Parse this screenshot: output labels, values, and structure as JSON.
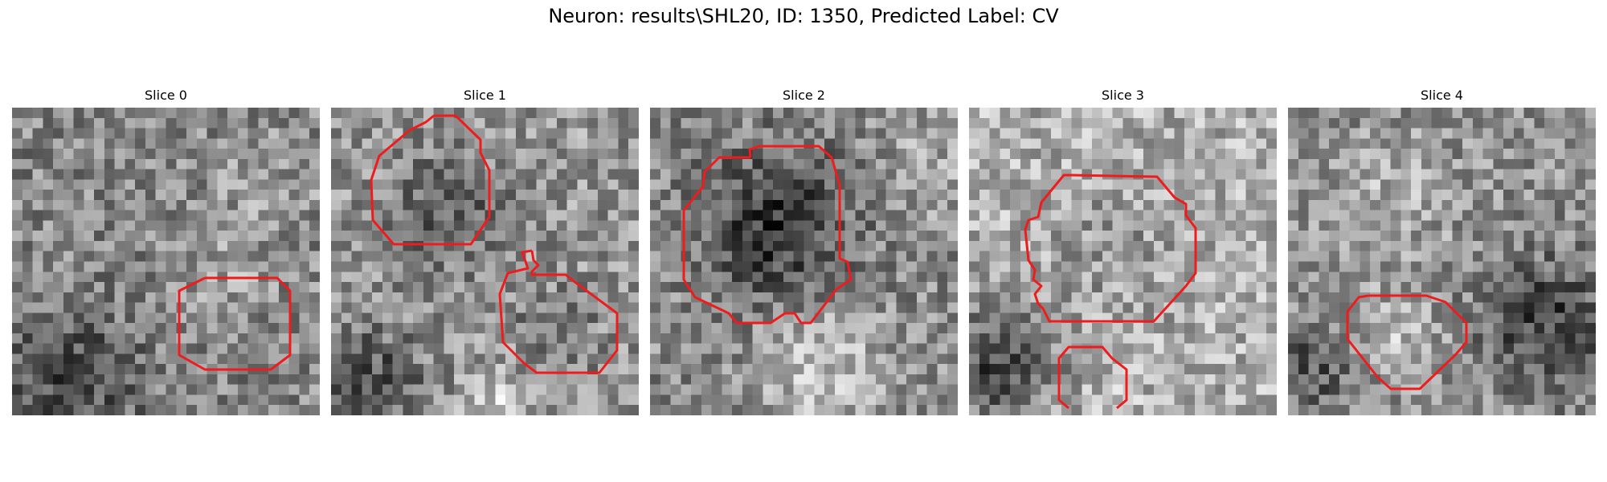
{
  "figure": {
    "title": "Neuron: results\\SHL20, ID: 1350, Predicted Label: CV",
    "contour_color": "#ee1c1c",
    "colormap": "gray"
  },
  "slices": [
    {
      "label": "Slice 0"
    },
    {
      "label": "Slice 1"
    },
    {
      "label": "Slice 2"
    },
    {
      "label": "Slice 3"
    },
    {
      "label": "Slice 4"
    }
  ]
}
